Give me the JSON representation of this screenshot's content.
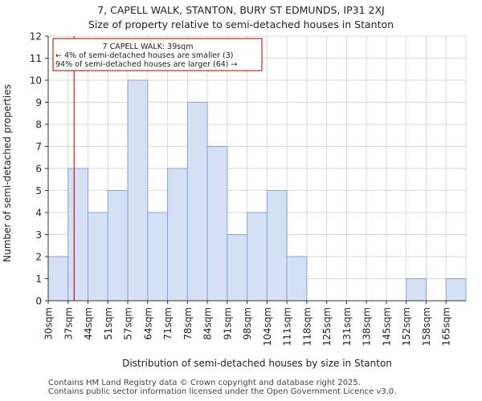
{
  "header": {
    "title": "7, CAPELL WALK, STANTON, BURY ST EDMUNDS, IP31 2XJ",
    "subtitle": "Size of property relative to semi-detached houses in Stanton"
  },
  "chart_data": {
    "type": "bar",
    "categories": [
      "30sqm",
      "37sqm",
      "44sqm",
      "51sqm",
      "57sqm",
      "64sqm",
      "71sqm",
      "78sqm",
      "84sqm",
      "91sqm",
      "98sqm",
      "104sqm",
      "111sqm",
      "118sqm",
      "125sqm",
      "131sqm",
      "138sqm",
      "145sqm",
      "152sqm",
      "158sqm",
      "165sqm"
    ],
    "values": [
      2,
      6,
      4,
      5,
      10,
      4,
      6,
      9,
      7,
      3,
      4,
      5,
      2,
      0,
      0,
      0,
      0,
      0,
      1,
      0,
      1
    ],
    "xlabel": "Distribution of semi-detached houses by size in Stanton",
    "ylabel": "Number of semi-detached properties",
    "ylim": [
      0,
      12
    ],
    "yticks": [
      0,
      1,
      2,
      3,
      4,
      5,
      6,
      7,
      8,
      9,
      10,
      11,
      12
    ],
    "grid": true,
    "marker": {
      "value_sqm": 39,
      "bin_index": 1,
      "bin_fraction": 0.3
    },
    "annotation": {
      "line1": "7 CAPELL WALK: 39sqm",
      "line2": "← 4% of semi-detached houses are smaller (3)",
      "line3": "94% of semi-detached houses are larger (64) →"
    },
    "colors": {
      "bar_fill": "#d6e0f4",
      "bar_edge": "#8aa4d6",
      "marker": "#a80000",
      "grid": "#d9d9d9",
      "axis": "#333333"
    }
  },
  "footer": {
    "line1": "Contains HM Land Registry data © Crown copyright and database right 2025.",
    "line2": "Contains public sector information licensed under the Open Government Licence v3.0."
  }
}
